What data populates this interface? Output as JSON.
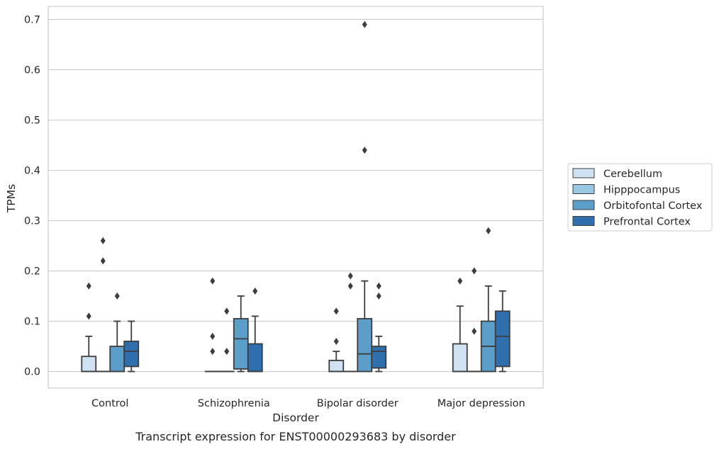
{
  "caption": "Transcript expression for ENST00000293683 by disorder",
  "chart_data": {
    "type": "box",
    "xlabel": "Disorder",
    "ylabel": "TPMs",
    "ylim": [
      -0.033,
      0.726
    ],
    "yticks": [
      "0.0",
      "0.1",
      "0.2",
      "0.3",
      "0.4",
      "0.5",
      "0.6",
      "0.7"
    ],
    "grid": "horizontal",
    "legend_placement": "right",
    "categories": [
      "Control",
      "Schizophrenia",
      "Bipolar disorder",
      "Major depression"
    ],
    "series": [
      {
        "name": "Cerebellum",
        "color": "#d0e2f2",
        "boxes": [
          {
            "q1": 0.0,
            "median": 0.0,
            "q3": 0.03,
            "whisker_low": 0.0,
            "whisker_high": 0.07,
            "outliers": [
              0.11,
              0.17
            ]
          },
          {
            "q1": 0.0,
            "median": 0.0,
            "q3": 0.0,
            "whisker_low": 0.0,
            "whisker_high": 0.0,
            "outliers": [
              0.04,
              0.07,
              0.18
            ]
          },
          {
            "q1": 0.0,
            "median": 0.0,
            "q3": 0.022,
            "whisker_low": 0.0,
            "whisker_high": 0.04,
            "outliers": [
              0.06,
              0.12
            ]
          },
          {
            "q1": 0.0,
            "median": 0.0,
            "q3": 0.055,
            "whisker_low": 0.0,
            "whisker_high": 0.13,
            "outliers": [
              0.18
            ]
          }
        ]
      },
      {
        "name": "Hipppocampus",
        "color": "#9ac8e0",
        "boxes": [
          {
            "q1": 0.0,
            "median": 0.0,
            "q3": 0.0,
            "whisker_low": 0.0,
            "whisker_high": 0.0,
            "outliers": [
              0.22,
              0.26
            ]
          },
          {
            "q1": 0.0,
            "median": 0.0,
            "q3": 0.0,
            "whisker_low": 0.0,
            "whisker_high": 0.0,
            "outliers": [
              0.04,
              0.12
            ]
          },
          {
            "q1": 0.0,
            "median": 0.0,
            "q3": 0.0,
            "whisker_low": 0.0,
            "whisker_high": 0.0,
            "outliers": [
              0.17,
              0.19
            ]
          },
          {
            "q1": 0.0,
            "median": 0.0,
            "q3": 0.0,
            "whisker_low": 0.0,
            "whisker_high": 0.0,
            "outliers": [
              0.08,
              0.2
            ]
          }
        ]
      },
      {
        "name": "Orbitofontal Cortex",
        "color": "#5a9ec9",
        "boxes": [
          {
            "q1": 0.0,
            "median": 0.0,
            "q3": 0.05,
            "whisker_low": 0.0,
            "whisker_high": 0.1,
            "outliers": [
              0.15
            ]
          },
          {
            "q1": 0.005,
            "median": 0.065,
            "q3": 0.105,
            "whisker_low": 0.0,
            "whisker_high": 0.15,
            "outliers": []
          },
          {
            "q1": 0.0,
            "median": 0.035,
            "q3": 0.105,
            "whisker_low": 0.0,
            "whisker_high": 0.18,
            "outliers": [
              0.44,
              0.69
            ]
          },
          {
            "q1": 0.0,
            "median": 0.05,
            "q3": 0.1,
            "whisker_low": 0.0,
            "whisker_high": 0.17,
            "outliers": [
              0.28
            ]
          }
        ]
      },
      {
        "name": "Prefrontal Cortex",
        "color": "#2f6fad",
        "boxes": [
          {
            "q1": 0.01,
            "median": 0.04,
            "q3": 0.06,
            "whisker_low": 0.0,
            "whisker_high": 0.1,
            "outliers": []
          },
          {
            "q1": 0.0,
            "median": 0.0,
            "q3": 0.055,
            "whisker_low": 0.0,
            "whisker_high": 0.11,
            "outliers": [
              0.16
            ]
          },
          {
            "q1": 0.007,
            "median": 0.04,
            "q3": 0.05,
            "whisker_low": 0.0,
            "whisker_high": 0.07,
            "outliers": [
              0.15,
              0.17
            ]
          },
          {
            "q1": 0.01,
            "median": 0.07,
            "q3": 0.12,
            "whisker_low": 0.0,
            "whisker_high": 0.16,
            "outliers": []
          }
        ]
      }
    ]
  }
}
